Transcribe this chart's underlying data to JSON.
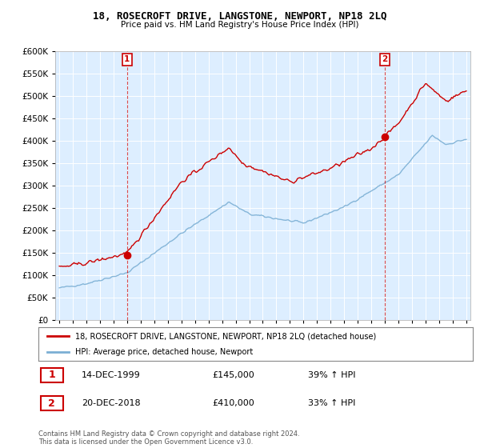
{
  "title": "18, ROSECROFT DRIVE, LANGSTONE, NEWPORT, NP18 2LQ",
  "subtitle": "Price paid vs. HM Land Registry's House Price Index (HPI)",
  "legend_line1": "18, ROSECROFT DRIVE, LANGSTONE, NEWPORT, NP18 2LQ (detached house)",
  "legend_line2": "HPI: Average price, detached house, Newport",
  "footer": "Contains HM Land Registry data © Crown copyright and database right 2024.\nThis data is licensed under the Open Government Licence v3.0.",
  "annotation1": {
    "num": "1",
    "date": "14-DEC-1999",
    "price": "£145,000",
    "hpi": "39% ↑ HPI"
  },
  "annotation2": {
    "num": "2",
    "date": "20-DEC-2018",
    "price": "£410,000",
    "hpi": "33% ↑ HPI"
  },
  "price_color": "#cc0000",
  "hpi_color": "#7bafd4",
  "plot_bg_color": "#ddeeff",
  "grid_color": "#bbccdd",
  "ylim": [
    0,
    600000
  ],
  "yticks": [
    0,
    50000,
    100000,
    150000,
    200000,
    250000,
    300000,
    350000,
    400000,
    450000,
    500000,
    550000,
    600000
  ],
  "sale1_year": 2000.0,
  "sale1_price": 145000,
  "sale2_year": 2019.0,
  "sale2_price": 410000,
  "xmin": 1995,
  "xmax": 2025
}
